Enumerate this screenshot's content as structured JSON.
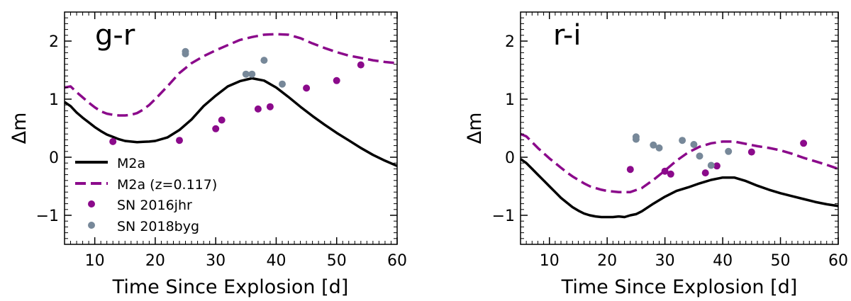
{
  "chart_data": [
    {
      "type": "line",
      "title": "g-r",
      "xlabel": "Time Since Explosion [d]",
      "ylabel": "Δm",
      "xlim": [
        5,
        60
      ],
      "ylim": [
        -1.5,
        2.5
      ],
      "xticks": [
        10,
        20,
        30,
        40,
        50,
        60
      ],
      "yticks": [
        -1,
        0,
        1,
        2
      ],
      "xtick_labels": [
        "10",
        "20",
        "30",
        "40",
        "50",
        "60"
      ],
      "ytick_labels": [
        "−1",
        "0",
        "1",
        "2"
      ],
      "legend_position": "bottom-left",
      "series": [
        {
          "name": "M2a",
          "kind": "line",
          "style": "solid",
          "color": "#000000",
          "x": [
            5,
            6,
            7,
            8,
            9,
            10,
            11,
            12,
            13,
            14,
            15,
            16,
            17,
            18,
            19,
            20,
            22,
            24,
            26,
            28,
            30,
            32,
            34,
            36,
            38,
            40,
            42,
            44,
            46,
            48,
            50,
            52,
            54,
            56,
            58,
            60
          ],
          "y": [
            0.95,
            0.88,
            0.77,
            0.68,
            0.6,
            0.52,
            0.45,
            0.39,
            0.35,
            0.31,
            0.28,
            0.27,
            0.26,
            0.265,
            0.27,
            0.28,
            0.34,
            0.47,
            0.65,
            0.88,
            1.06,
            1.22,
            1.31,
            1.36,
            1.32,
            1.2,
            1.04,
            0.87,
            0.71,
            0.56,
            0.42,
            0.29,
            0.16,
            0.04,
            -0.06,
            -0.15
          ]
        },
        {
          "name": "M2a (z=0.117)",
          "kind": "line",
          "style": "dashed",
          "color": "#8b0a8b",
          "x": [
            5,
            6,
            7,
            8,
            9,
            10,
            11,
            12,
            13,
            14,
            15,
            16,
            17,
            18,
            19,
            20,
            22,
            24,
            26,
            28,
            30,
            32,
            34,
            36,
            38,
            40,
            42,
            44,
            46,
            48,
            50,
            52,
            54,
            56,
            58,
            60
          ],
          "y": [
            1.2,
            1.22,
            1.12,
            1.03,
            0.94,
            0.86,
            0.79,
            0.75,
            0.73,
            0.72,
            0.72,
            0.73,
            0.76,
            0.82,
            0.9,
            1.0,
            1.22,
            1.45,
            1.62,
            1.74,
            1.84,
            1.93,
            2.02,
            2.07,
            2.11,
            2.12,
            2.11,
            2.05,
            1.96,
            1.88,
            1.81,
            1.75,
            1.71,
            1.67,
            1.64,
            1.62
          ]
        },
        {
          "name": "SN 2016jhr",
          "kind": "scatter",
          "color": "#8b0a8b",
          "x": [
            13,
            24,
            30,
            31,
            37,
            39,
            45,
            50,
            54
          ],
          "y": [
            0.27,
            0.29,
            0.49,
            0.64,
            0.83,
            0.87,
            1.19,
            1.32,
            1.59
          ]
        },
        {
          "name": "SN 2018byg",
          "kind": "scatter",
          "color": "#778899",
          "x": [
            25,
            25,
            35,
            36,
            38,
            41
          ],
          "y": [
            1.78,
            1.82,
            1.43,
            1.43,
            1.67,
            1.26
          ]
        }
      ]
    },
    {
      "type": "line",
      "title": "r-i",
      "xlabel": "Time Since Explosion [d]",
      "ylabel": "Δm",
      "xlim": [
        5,
        60
      ],
      "ylim": [
        -1.5,
        2.5
      ],
      "xticks": [
        10,
        20,
        30,
        40,
        50,
        60
      ],
      "yticks": [
        -1,
        0,
        1,
        2
      ],
      "xtick_labels": [
        "10",
        "20",
        "30",
        "40",
        "50",
        "60"
      ],
      "ytick_labels": [
        "−1",
        "0",
        "1",
        "2"
      ],
      "series": [
        {
          "name": "M2a",
          "kind": "line",
          "style": "solid",
          "color": "#000000",
          "x": [
            5,
            6,
            7,
            8,
            9,
            10,
            11,
            12,
            13,
            14,
            15,
            16,
            17,
            18,
            19,
            20,
            21,
            22,
            23,
            24,
            25,
            26,
            28,
            30,
            32,
            34,
            36,
            38,
            40,
            42,
            44,
            46,
            48,
            50,
            52,
            54,
            56,
            58,
            60
          ],
          "y": [
            -0.03,
            -0.1,
            -0.2,
            -0.3,
            -0.4,
            -0.5,
            -0.6,
            -0.7,
            -0.78,
            -0.86,
            -0.92,
            -0.97,
            -1.0,
            -1.02,
            -1.03,
            -1.03,
            -1.03,
            -1.02,
            -1.03,
            -1.0,
            -0.98,
            -0.93,
            -0.8,
            -0.68,
            -0.58,
            -0.52,
            -0.45,
            -0.39,
            -0.35,
            -0.35,
            -0.41,
            -0.49,
            -0.56,
            -0.62,
            -0.67,
            -0.72,
            -0.77,
            -0.81,
            -0.84
          ]
        },
        {
          "name": "M2a (z=0.117)",
          "kind": "line",
          "style": "dashed",
          "color": "#8b0a8b",
          "x": [
            5,
            6,
            7,
            8,
            9,
            10,
            11,
            12,
            13,
            14,
            15,
            16,
            17,
            18,
            19,
            20,
            22,
            24,
            26,
            28,
            30,
            32,
            34,
            36,
            38,
            40,
            42,
            44,
            46,
            48,
            50,
            52,
            54,
            56,
            58,
            60
          ],
          "y": [
            0.4,
            0.36,
            0.26,
            0.16,
            0.07,
            -0.02,
            -0.1,
            -0.18,
            -0.26,
            -0.33,
            -0.39,
            -0.45,
            -0.5,
            -0.53,
            -0.56,
            -0.58,
            -0.6,
            -0.6,
            -0.53,
            -0.39,
            -0.23,
            -0.06,
            0.08,
            0.18,
            0.24,
            0.27,
            0.27,
            0.23,
            0.19,
            0.16,
            0.12,
            0.06,
            -0.01,
            -0.07,
            -0.13,
            -0.2
          ]
        },
        {
          "name": "SN 2016jhr",
          "kind": "scatter",
          "color": "#8b0a8b",
          "x": [
            24,
            30,
            31,
            37,
            39,
            45,
            54
          ],
          "y": [
            -0.21,
            -0.24,
            -0.29,
            -0.27,
            -0.15,
            0.09,
            0.24
          ]
        },
        {
          "name": "SN 2018byg",
          "kind": "scatter",
          "color": "#778899",
          "x": [
            25,
            25,
            28,
            29,
            33,
            35,
            36,
            38,
            41
          ],
          "y": [
            0.31,
            0.35,
            0.21,
            0.16,
            0.29,
            0.22,
            0.02,
            -0.14,
            0.1
          ]
        }
      ]
    }
  ]
}
